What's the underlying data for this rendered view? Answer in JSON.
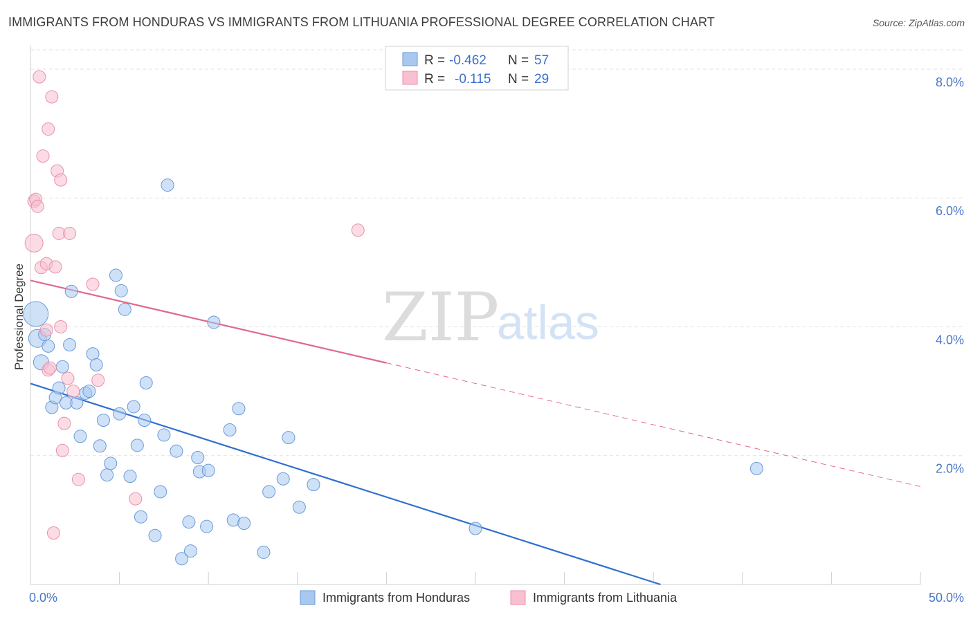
{
  "title": "IMMIGRANTS FROM HONDURAS VS IMMIGRANTS FROM LITHUANIA PROFESSIONAL DEGREE CORRELATION CHART",
  "source": "Source: ZipAtlas.com",
  "watermark": {
    "zip": "ZIP",
    "atlas": "atlas"
  },
  "chart_data": {
    "type": "scatter",
    "title": "IMMIGRANTS FROM HONDURAS VS IMMIGRANTS FROM LITHUANIA PROFESSIONAL DEGREE CORRELATION CHART",
    "xlabel": "",
    "ylabel": "Professional Degree",
    "xlim": [
      0,
      50
    ],
    "ylim": [
      0,
      8.3
    ],
    "x_ticks": [
      {
        "value": 0,
        "label": "0.0%"
      },
      {
        "value": 50,
        "label": "50.0%"
      }
    ],
    "y_ticks": [
      {
        "value": 2,
        "label": "2.0%"
      },
      {
        "value": 4,
        "label": "4.0%"
      },
      {
        "value": 6,
        "label": "6.0%"
      },
      {
        "value": 8,
        "label": "8.0%"
      }
    ],
    "grid": true,
    "legend": {
      "placement": "top-center",
      "entries": [
        {
          "r_label": "R = ",
          "r_value": "-0.462",
          "n_label": "N = ",
          "n_value": "57"
        },
        {
          "r_label": "R = ",
          "r_value": "-0.115",
          "n_label": "N = ",
          "n_value": "29"
        }
      ]
    },
    "series": [
      {
        "name": "Immigrants from Honduras",
        "color": "#a8c8f0",
        "edge": "#6a9ad8",
        "trend_color": "#2f6fd0",
        "trend": {
          "x0": 0,
          "y0": 3.12,
          "x1": 35.4,
          "y1": 0.0,
          "dash_to": null
        },
        "points": [
          {
            "x": 0.3,
            "y": 4.2,
            "s": 18
          },
          {
            "x": 0.4,
            "y": 3.82,
            "s": 13
          },
          {
            "x": 0.6,
            "y": 3.45,
            "s": 11
          },
          {
            "x": 0.8,
            "y": 3.88,
            "s": 9
          },
          {
            "x": 1.0,
            "y": 3.7,
            "s": 9
          },
          {
            "x": 1.2,
            "y": 2.75,
            "s": 9
          },
          {
            "x": 1.4,
            "y": 2.9,
            "s": 9
          },
          {
            "x": 1.6,
            "y": 3.05,
            "s": 9
          },
          {
            "x": 1.8,
            "y": 3.38,
            "s": 9
          },
          {
            "x": 2.0,
            "y": 2.82,
            "s": 9
          },
          {
            "x": 2.2,
            "y": 3.72,
            "s": 9
          },
          {
            "x": 2.3,
            "y": 4.55,
            "s": 9
          },
          {
            "x": 2.6,
            "y": 2.82,
            "s": 9
          },
          {
            "x": 2.8,
            "y": 2.3,
            "s": 9
          },
          {
            "x": 3.1,
            "y": 2.97,
            "s": 9
          },
          {
            "x": 3.3,
            "y": 3.0,
            "s": 9
          },
          {
            "x": 3.5,
            "y": 3.58,
            "s": 9
          },
          {
            "x": 3.7,
            "y": 3.41,
            "s": 9
          },
          {
            "x": 3.9,
            "y": 2.15,
            "s": 9
          },
          {
            "x": 4.1,
            "y": 2.55,
            "s": 9
          },
          {
            "x": 4.3,
            "y": 1.7,
            "s": 9
          },
          {
            "x": 4.5,
            "y": 1.88,
            "s": 9
          },
          {
            "x": 4.8,
            "y": 4.8,
            "s": 9
          },
          {
            "x": 5.0,
            "y": 2.65,
            "s": 9
          },
          {
            "x": 5.1,
            "y": 4.56,
            "s": 9
          },
          {
            "x": 5.3,
            "y": 4.27,
            "s": 9
          },
          {
            "x": 5.6,
            "y": 1.68,
            "s": 9
          },
          {
            "x": 5.8,
            "y": 2.76,
            "s": 9
          },
          {
            "x": 6.0,
            "y": 2.16,
            "s": 9
          },
          {
            "x": 6.2,
            "y": 1.05,
            "s": 9
          },
          {
            "x": 6.4,
            "y": 2.55,
            "s": 9
          },
          {
            "x": 6.5,
            "y": 3.13,
            "s": 9
          },
          {
            "x": 7.0,
            "y": 0.76,
            "s": 9
          },
          {
            "x": 7.3,
            "y": 1.44,
            "s": 9
          },
          {
            "x": 7.5,
            "y": 2.32,
            "s": 9
          },
          {
            "x": 7.7,
            "y": 6.2,
            "s": 9
          },
          {
            "x": 8.2,
            "y": 2.07,
            "s": 9
          },
          {
            "x": 8.5,
            "y": 0.4,
            "s": 9
          },
          {
            "x": 8.9,
            "y": 0.97,
            "s": 9
          },
          {
            "x": 9.0,
            "y": 0.52,
            "s": 9
          },
          {
            "x": 9.4,
            "y": 1.97,
            "s": 9
          },
          {
            "x": 9.5,
            "y": 1.75,
            "s": 9
          },
          {
            "x": 9.9,
            "y": 0.9,
            "s": 9
          },
          {
            "x": 10.0,
            "y": 1.77,
            "s": 9
          },
          {
            "x": 10.3,
            "y": 4.07,
            "s": 9
          },
          {
            "x": 11.2,
            "y": 2.4,
            "s": 9
          },
          {
            "x": 11.4,
            "y": 1.0,
            "s": 9
          },
          {
            "x": 11.7,
            "y": 2.73,
            "s": 9
          },
          {
            "x": 12.0,
            "y": 0.95,
            "s": 9
          },
          {
            "x": 13.1,
            "y": 0.5,
            "s": 9
          },
          {
            "x": 13.4,
            "y": 1.44,
            "s": 9
          },
          {
            "x": 14.2,
            "y": 1.64,
            "s": 9
          },
          {
            "x": 14.5,
            "y": 2.28,
            "s": 9
          },
          {
            "x": 15.1,
            "y": 1.2,
            "s": 9
          },
          {
            "x": 15.9,
            "y": 1.55,
            "s": 9
          },
          {
            "x": 25.0,
            "y": 0.87,
            "s": 9
          },
          {
            "x": 40.8,
            "y": 1.8,
            "s": 9
          }
        ]
      },
      {
        "name": "Immigrants from Lithuania",
        "color": "#f8c0d0",
        "edge": "#e890aa",
        "trend_color": "#e06890",
        "trend": {
          "x0": 0,
          "y0": 4.72,
          "x1": 20,
          "y1": 3.44,
          "dash_to": {
            "x": 50,
            "y": 1.52
          }
        },
        "points": [
          {
            "x": 0.2,
            "y": 5.3,
            "s": 13
          },
          {
            "x": 0.2,
            "y": 5.95,
            "s": 9
          },
          {
            "x": 0.3,
            "y": 5.98,
            "s": 9
          },
          {
            "x": 0.4,
            "y": 5.87,
            "s": 9
          },
          {
            "x": 0.5,
            "y": 7.88,
            "s": 9
          },
          {
            "x": 0.6,
            "y": 4.92,
            "s": 9
          },
          {
            "x": 0.7,
            "y": 6.65,
            "s": 9
          },
          {
            "x": 0.9,
            "y": 4.98,
            "s": 9
          },
          {
            "x": 0.9,
            "y": 3.95,
            "s": 9
          },
          {
            "x": 1.0,
            "y": 7.07,
            "s": 9
          },
          {
            "x": 1.0,
            "y": 3.33,
            "s": 9
          },
          {
            "x": 1.1,
            "y": 3.36,
            "s": 9
          },
          {
            "x": 1.2,
            "y": 7.57,
            "s": 9
          },
          {
            "x": 1.3,
            "y": 0.8,
            "s": 9
          },
          {
            "x": 1.4,
            "y": 4.93,
            "s": 9
          },
          {
            "x": 1.5,
            "y": 6.42,
            "s": 9
          },
          {
            "x": 1.6,
            "y": 5.45,
            "s": 9
          },
          {
            "x": 1.7,
            "y": 6.28,
            "s": 9
          },
          {
            "x": 1.7,
            "y": 4.0,
            "s": 9
          },
          {
            "x": 1.8,
            "y": 2.08,
            "s": 9
          },
          {
            "x": 1.9,
            "y": 2.5,
            "s": 9
          },
          {
            "x": 2.1,
            "y": 3.2,
            "s": 9
          },
          {
            "x": 2.2,
            "y": 5.45,
            "s": 9
          },
          {
            "x": 2.4,
            "y": 3.0,
            "s": 9
          },
          {
            "x": 2.7,
            "y": 1.63,
            "s": 9
          },
          {
            "x": 3.8,
            "y": 3.17,
            "s": 9
          },
          {
            "x": 3.5,
            "y": 4.66,
            "s": 9
          },
          {
            "x": 5.9,
            "y": 1.33,
            "s": 9
          },
          {
            "x": 18.4,
            "y": 5.5,
            "s": 9
          }
        ]
      }
    ]
  }
}
